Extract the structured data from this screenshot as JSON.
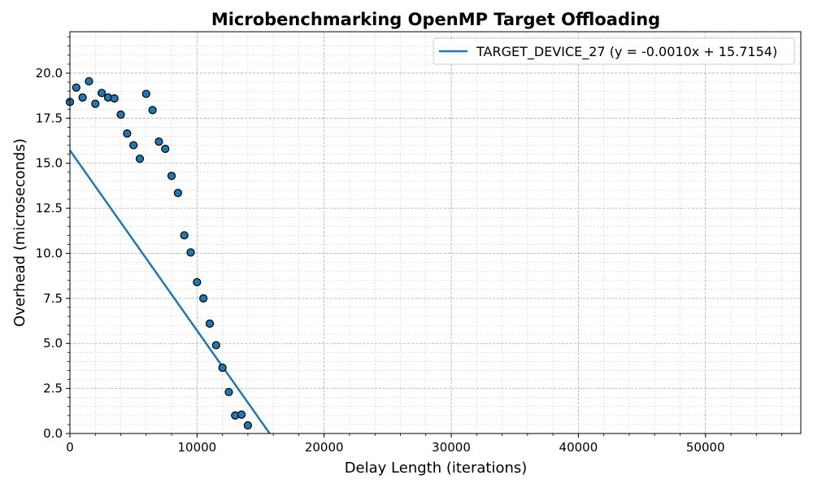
{
  "chart_data": {
    "type": "scatter",
    "title": "Microbenchmarking OpenMP Target Offloading",
    "xlabel": "Delay Length (iterations)",
    "ylabel": "Overhead (microseconds)",
    "xlim": [
      0,
      57500
    ],
    "ylim": [
      0,
      22.3
    ],
    "x_ticks": [
      0,
      10000,
      20000,
      30000,
      40000,
      50000
    ],
    "y_ticks": [
      0.0,
      2.5,
      5.0,
      7.5,
      10.0,
      12.5,
      15.0,
      17.5,
      20.0
    ],
    "x_tick_labels": [
      "0",
      "10000",
      "20000",
      "30000",
      "40000",
      "50000"
    ],
    "y_tick_labels": [
      "0.0",
      "2.5",
      "5.0",
      "7.5",
      "10.0",
      "12.5",
      "15.0",
      "17.5",
      "20.0"
    ],
    "grid": true,
    "legend_position": "upper-right",
    "colors": {
      "series": "#1f77b4",
      "marker_edge": "#000000",
      "grid": "#b0b0b0"
    },
    "series": [
      {
        "name": "TARGET_DEVICE_27 (y = -0.0010x + 15.7154)",
        "kind": "fit-line",
        "slope": -0.001,
        "intercept": 15.7154
      },
      {
        "kind": "scatter",
        "points": [
          [
            0,
            18.4
          ],
          [
            500,
            19.2
          ],
          [
            1000,
            18.65
          ],
          [
            1500,
            19.55
          ],
          [
            2000,
            18.3
          ],
          [
            2500,
            18.9
          ],
          [
            3000,
            18.65
          ],
          [
            3500,
            18.6
          ],
          [
            4000,
            17.7
          ],
          [
            4500,
            16.65
          ],
          [
            5000,
            16.0
          ],
          [
            5500,
            15.25
          ],
          [
            6000,
            18.85
          ],
          [
            6500,
            17.95
          ],
          [
            7000,
            16.2
          ],
          [
            7500,
            15.8
          ],
          [
            8000,
            14.3
          ],
          [
            8500,
            13.35
          ],
          [
            9000,
            11.0
          ],
          [
            9500,
            10.05
          ],
          [
            10000,
            8.4
          ],
          [
            10500,
            7.5
          ],
          [
            11000,
            6.1
          ],
          [
            11500,
            4.9
          ],
          [
            12000,
            3.65
          ],
          [
            12500,
            2.3
          ],
          [
            13000,
            1.0
          ],
          [
            13500,
            1.05
          ],
          [
            14000,
            0.45
          ]
        ]
      }
    ]
  }
}
